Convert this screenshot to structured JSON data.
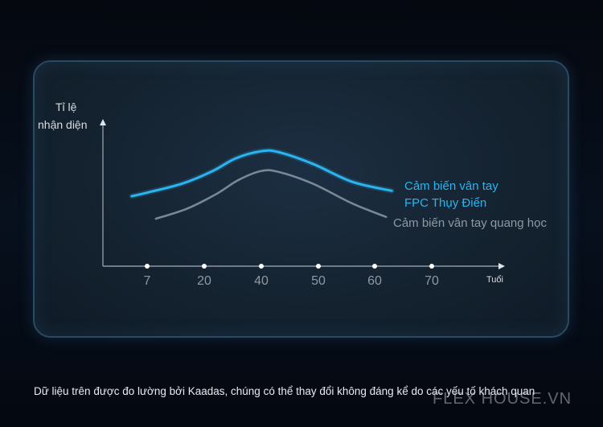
{
  "chart_data": {
    "type": "line",
    "ylabel": [
      "Tỉ lệ",
      "nhận diện"
    ],
    "xlabel": "Tuổi",
    "x_ticks": [
      "7",
      "20",
      "40",
      "50",
      "60",
      "70"
    ],
    "series": [
      {
        "name": [
          "Cảm biến vân tay",
          "FPC Thụy Điển"
        ],
        "color": "#2bb4f0",
        "x": [
          3.5,
          7,
          15,
          23,
          31,
          40,
          43,
          49,
          56,
          63
        ],
        "y": [
          0.5,
          0.54,
          0.64,
          0.78,
          0.92,
          1.0,
          0.99,
          0.86,
          0.66,
          0.56
        ]
      },
      {
        "name": [
          "Cảm biến vân tay quang học"
        ],
        "color": "#7a8794",
        "x": [
          9,
          16,
          24,
          32,
          40,
          43,
          49,
          56,
          62
        ],
        "y": [
          0.25,
          0.36,
          0.52,
          0.68,
          0.78,
          0.77,
          0.64,
          0.42,
          0.27
        ]
      }
    ]
  },
  "footnote": "Dữ liệu trên được đo lường bởi Kaadas, chúng có thể thay đổi không đáng kể do các yếu tố khách quan",
  "watermark": "FLEX HOUSE.VN"
}
